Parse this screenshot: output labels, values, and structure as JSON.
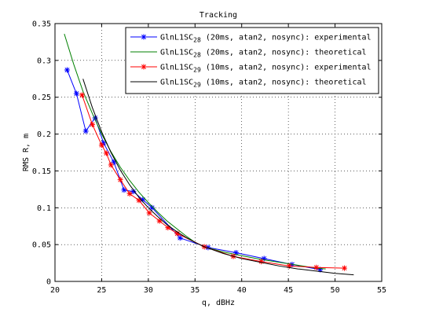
{
  "chart_data": {
    "type": "line",
    "title": "Tracking",
    "xlabel": "q, dBHz",
    "ylabel": "RMS R, m",
    "xlim": [
      20,
      55
    ],
    "ylim": [
      0,
      0.35
    ],
    "xticks": [
      "20",
      "25",
      "30",
      "35",
      "40",
      "45",
      "50",
      "55"
    ],
    "yticks": [
      "0",
      "0.05",
      "0.1",
      "0.15",
      "0.2",
      "0.25",
      "0.3",
      "0.35"
    ],
    "grid": true,
    "legend_position": "top-right",
    "series": [
      {
        "name_main": "GlnL1SC",
        "name_sub": "28",
        "name_rest": " (20ms, atan2, nosync): experimental",
        "color": "#0000ff",
        "marker": "asterisk",
        "x": [
          21.3,
          22.3,
          23.3,
          24.3,
          25.2,
          26.3,
          27.4,
          28.4,
          29.4,
          30.4,
          33.4,
          36.4,
          39.4,
          42.4,
          45.4,
          48.4
        ],
        "y": [
          0.287,
          0.255,
          0.204,
          0.222,
          0.188,
          0.162,
          0.124,
          0.122,
          0.111,
          0.1,
          0.059,
          0.046,
          0.039,
          0.031,
          0.023,
          0.016
        ]
      },
      {
        "name_main": "GlnL1SC",
        "name_sub": "28",
        "name_rest": " (20ms, atan2, nosync): theoretical",
        "color": "#008000",
        "marker": "none",
        "x": [
          21.0,
          22.0,
          23.0,
          24.0,
          25.0,
          26.0,
          27.0,
          28.0,
          29.0,
          30.0,
          31.0,
          32.0,
          33.0,
          34.0,
          35.0,
          36.0,
          38.0,
          40.0,
          42.0,
          44.0,
          46.0,
          48.0,
          49.0
        ],
        "y": [
          0.336,
          0.295,
          0.258,
          0.228,
          0.2,
          0.176,
          0.155,
          0.137,
          0.121,
          0.107,
          0.094,
          0.082,
          0.072,
          0.062,
          0.053,
          0.047,
          0.04,
          0.035,
          0.03,
          0.026,
          0.022,
          0.018,
          0.017
        ]
      },
      {
        "name_main": "GlnL1SC",
        "name_sub": "29",
        "name_rest": " (10ms, atan2, nosync): experimental",
        "color": "#ff0000",
        "marker": "asterisk",
        "x": [
          22.9,
          24.0,
          25.0,
          25.5,
          26.0,
          27.0,
          28.0,
          29.0,
          30.1,
          31.2,
          32.1,
          33.1,
          36.0,
          39.1,
          42.1,
          45.1,
          48.0,
          51.0
        ],
        "y": [
          0.253,
          0.213,
          0.185,
          0.174,
          0.158,
          0.138,
          0.119,
          0.11,
          0.093,
          0.082,
          0.073,
          0.065,
          0.047,
          0.034,
          0.027,
          0.021,
          0.019,
          0.018
        ]
      },
      {
        "name_main": "GlnL1SC",
        "name_sub": "29",
        "name_rest": " (10ms, atan2, nosync): theoretical",
        "color": "#000000",
        "marker": "none",
        "x": [
          23.0,
          24.0,
          25.0,
          26.0,
          27.0,
          28.0,
          29.0,
          30.0,
          31.0,
          32.0,
          33.0,
          34.0,
          35.0,
          36.0,
          38.0,
          40.0,
          42.0,
          44.0,
          46.0,
          48.0,
          50.0,
          52.0
        ],
        "y": [
          0.275,
          0.236,
          0.203,
          0.175,
          0.151,
          0.131,
          0.114,
          0.1,
          0.088,
          0.077,
          0.068,
          0.06,
          0.053,
          0.047,
          0.038,
          0.031,
          0.026,
          0.021,
          0.017,
          0.014,
          0.011,
          0.009
        ]
      }
    ]
  }
}
